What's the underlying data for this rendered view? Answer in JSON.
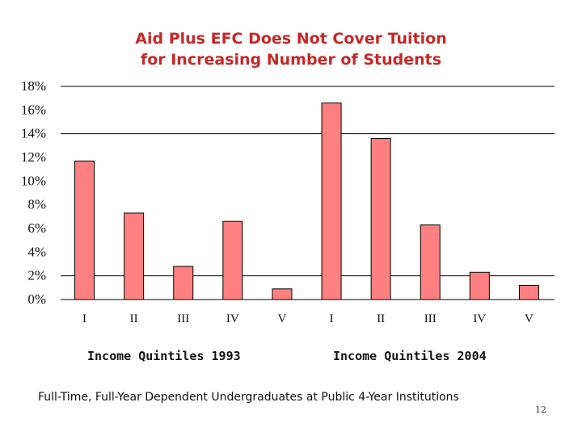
{
  "title_lines": [
    "Aid Plus EFC Does Not Cover Tuition",
    "for Increasing Number of Students"
  ],
  "chart_data": {
    "type": "bar",
    "title": "Aid Plus EFC Does Not Cover Tuition for Increasing Number of Students",
    "categories": [
      "I",
      "II",
      "III",
      "IV",
      "V",
      "I",
      "II",
      "III",
      "IV",
      "V"
    ],
    "groups": [
      {
        "label": "Income Quintiles 1993",
        "categories": [
          "I",
          "II",
          "III",
          "IV",
          "V"
        ],
        "values": [
          11.7,
          7.3,
          2.8,
          6.6,
          0.9
        ]
      },
      {
        "label": "Income Quintiles 2004",
        "categories": [
          "I",
          "II",
          "III",
          "IV",
          "V"
        ],
        "values": [
          16.6,
          13.6,
          6.3,
          2.3,
          1.2
        ]
      }
    ],
    "values": [
      11.7,
      7.3,
      2.8,
      6.6,
      0.9,
      16.6,
      13.6,
      6.3,
      2.3,
      1.2
    ],
    "y_ticks": [
      "0%",
      "2%",
      "4%",
      "6%",
      "8%",
      "10%",
      "12%",
      "14%",
      "16%",
      "18%"
    ],
    "ylim": [
      0,
      18
    ],
    "grid": "major gridlines at 2%, 14% and 18%",
    "bar_color": "#ff8080",
    "bar_border": "#000000"
  },
  "group_labels": [
    "Income Quintiles 1993",
    "Income Quintiles 2004"
  ],
  "footnote": "Full-Time, Full-Year Dependent Undergraduates at Public 4-Year Institutions",
  "slide_number": "12",
  "colors": {
    "title": "#c62828",
    "bars": "#ff8080",
    "text": "#111111"
  }
}
